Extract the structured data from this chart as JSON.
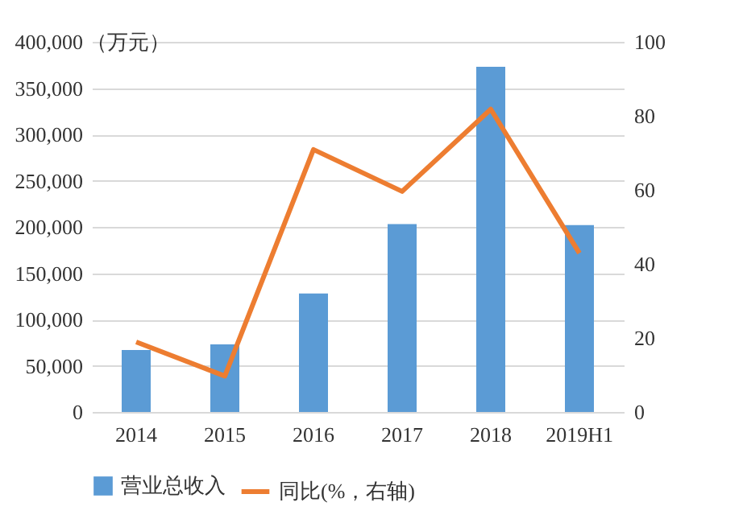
{
  "chart_data": {
    "type": "bar",
    "ylabel": "（万元）",
    "categories": [
      "2014",
      "2015",
      "2016",
      "2017",
      "2018",
      "2019H1"
    ],
    "series": [
      {
        "name": "营业总收入",
        "color": "#5b9bd5",
        "values": [
          67000,
          73000,
          128000,
          203000,
          373000,
          202000
        ]
      },
      {
        "name": "同比(%，右轴)",
        "type": "line",
        "axis": "y2",
        "color": "#ed7d31",
        "marker": "none",
        "values": [
          18.9,
          9.7,
          70.9,
          59.6,
          81.8,
          42.9
        ]
      }
    ],
    "ylim": [
      0,
      400000
    ],
    "yticks": [
      0,
      {
        "value": 50000,
        "label": "50,000"
      },
      {
        "value": 100000,
        "label": "100,000"
      },
      {
        "value": 150000,
        "label": "150,000"
      },
      {
        "value": 200000,
        "label": "200,000"
      },
      {
        "value": 250000,
        "label": "250,000"
      },
      {
        "value": 300000,
        "label": "300,000"
      },
      {
        "value": 350000,
        "label": "350,000"
      },
      {
        "value": 400000,
        "label": "400,000"
      }
    ],
    "y2lim": [
      0,
      100
    ],
    "y2ticks": [
      0,
      20,
      40,
      60,
      80,
      100
    ],
    "grid": "y",
    "legend": "bottom"
  }
}
